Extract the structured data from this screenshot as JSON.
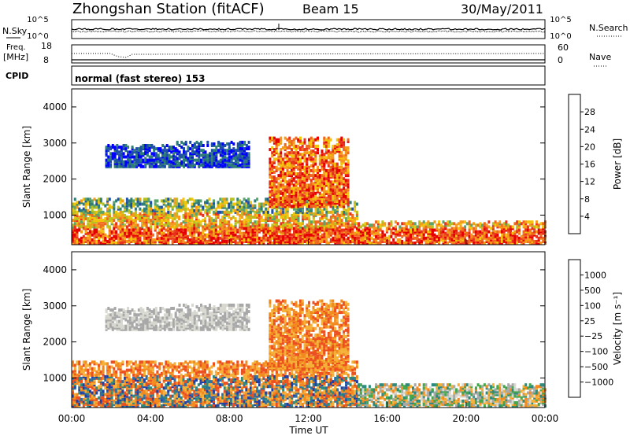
{
  "header": {
    "station": "Zhongshan Station (fitACF)",
    "beam": "Beam 15",
    "date": "30/May/2011"
  },
  "info_panel": {
    "nsky_label": "N.Sky",
    "nsky_ticks": [
      "10^5",
      "10^0"
    ],
    "nsearch_label": "N.Search",
    "nsearch_ticks": [
      "10^5",
      "10^0"
    ],
    "freq_label_1": "Freq.",
    "freq_label_2": "[MHz]",
    "freq_ticks": [
      "18",
      "8"
    ],
    "nave_label": "Nave",
    "nave_ticks": [
      "60",
      "0"
    ],
    "cpid_label": "CPID",
    "cpid_text": "normal (fast stereo) 153"
  },
  "colors": {
    "power_scale": [
      "#0000ff",
      "#1e4fa8",
      "#2f7f76",
      "#5aa36a",
      "#b8c020",
      "#f2c40a",
      "#f59a1a",
      "#ef6a1e",
      "#e8321e",
      "#e60000"
    ],
    "velocity_scale": [
      "#2040a8",
      "#2f6fa0",
      "#2e8a7c",
      "#44a84a",
      "#a8a8a8",
      "#d8d8d0",
      "#f5b038",
      "#f28a20",
      "#ec5020",
      "#e81010"
    ]
  },
  "chart_data": [
    {
      "type": "heatmap",
      "name": "power",
      "ylabel": "Slant Range [km]",
      "yticks": [
        "1000",
        "2000",
        "3000",
        "4000"
      ],
      "ylim": [
        180,
        4500
      ],
      "xlim": [
        0,
        24
      ],
      "xticks": [
        "00:00",
        "04:00",
        "08:00",
        "12:00",
        "16:00",
        "20:00",
        "00:00"
      ],
      "colorbar_label": "Power [dB]",
      "colorbar_ticks": [
        "4",
        "8",
        "12",
        "16",
        "20",
        "24",
        "28"
      ],
      "colorbar_range": [
        0,
        30
      ],
      "approx_echo_regions": [
        {
          "t_start": 0.0,
          "t_end": 14.5,
          "r_start": 180,
          "r_end": 1400
        },
        {
          "t_start": 1.7,
          "t_end": 5.3,
          "r_start": 2300,
          "r_end": 2900
        },
        {
          "t_start": 5.3,
          "t_end": 9.0,
          "r_start": 2300,
          "r_end": 3000
        },
        {
          "t_start": 10.0,
          "t_end": 14.0,
          "r_start": 1200,
          "r_end": 3100
        },
        {
          "t_start": 14.5,
          "t_end": 24.0,
          "r_start": 180,
          "r_end": 800
        }
      ]
    },
    {
      "type": "heatmap",
      "name": "velocity",
      "ylabel": "Slant Range [km]",
      "yticks": [
        "1000",
        "2000",
        "3000",
        "4000"
      ],
      "ylim": [
        180,
        4500
      ],
      "xlim": [
        0,
        24
      ],
      "xticks": [
        "00:00",
        "04:00",
        "08:00",
        "12:00",
        "16:00",
        "20:00",
        "00:00"
      ],
      "xlabel": "Time UT",
      "colorbar_label": "Velocity [m s⁻¹]",
      "colorbar_ticks": [
        "1000",
        "500",
        "100",
        "25",
        "−25",
        "−100",
        "−500",
        "−1000"
      ],
      "colorbar_range": [
        -1000,
        1000
      ]
    }
  ]
}
